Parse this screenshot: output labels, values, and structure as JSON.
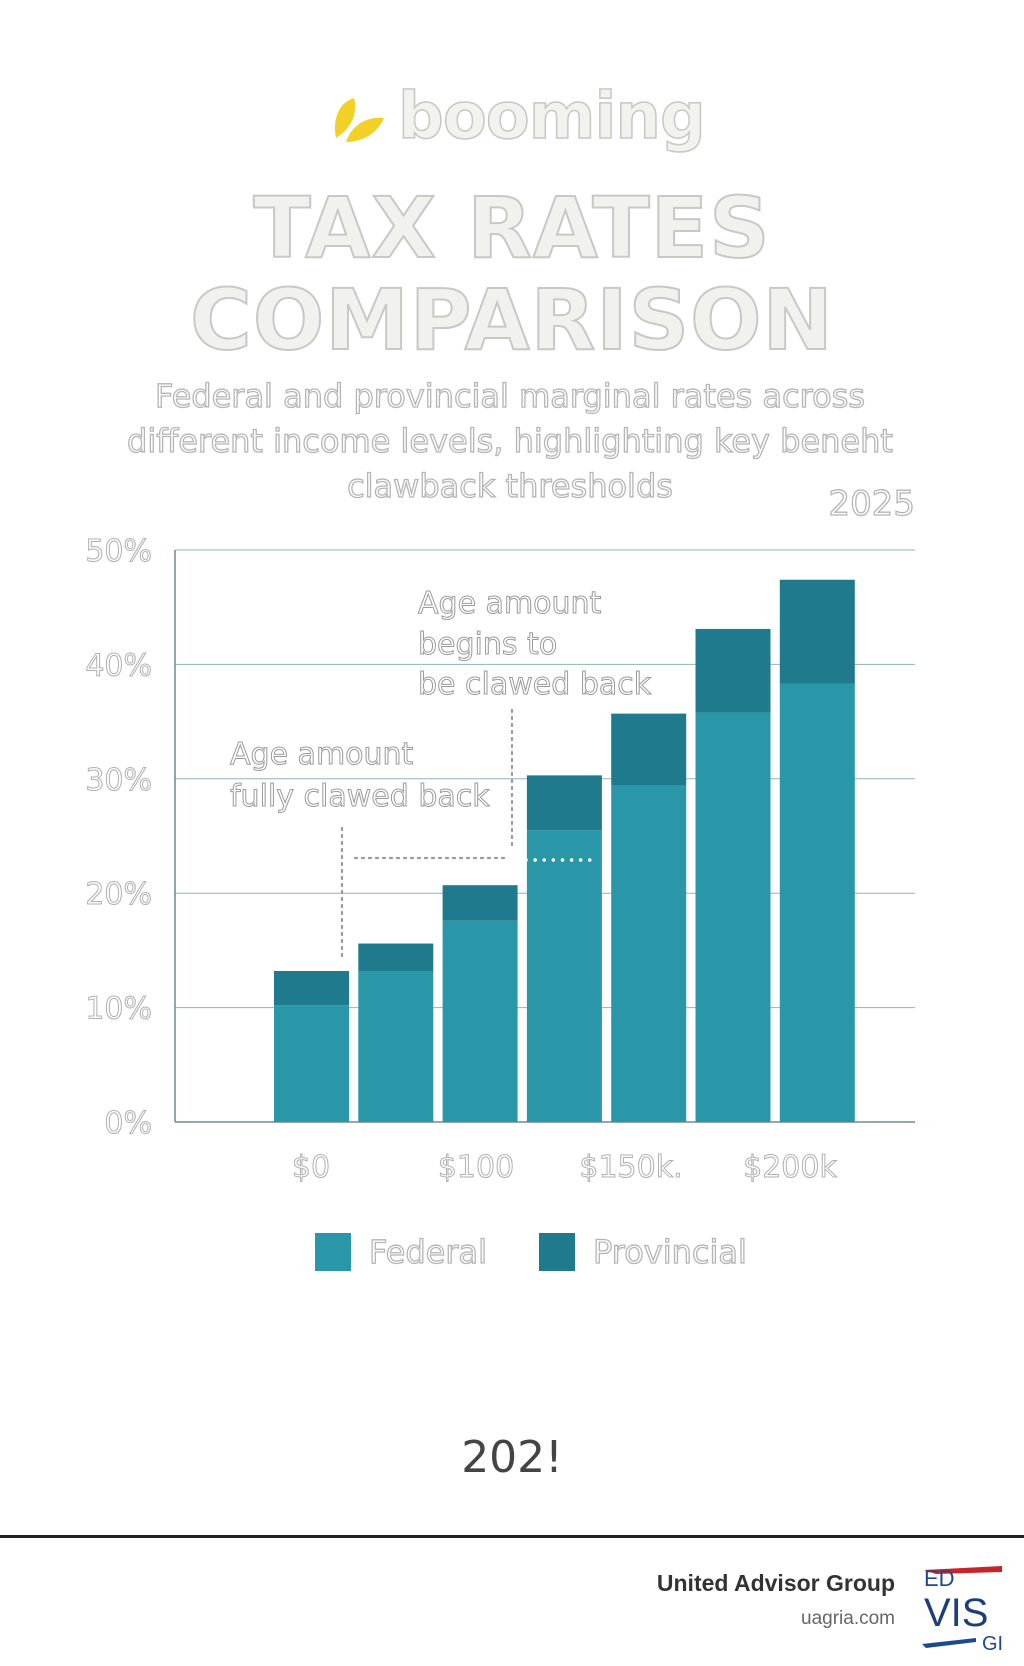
{
  "brand": {
    "name": "booming",
    "icon": "leaf-icon",
    "icon_color": "#f2d027"
  },
  "title": {
    "line1": "TAX RATES",
    "line2": "COMPARISON"
  },
  "subtitle": {
    "line1": "Federal and provincial marginal rates across",
    "line2": "different income levels, highlighting key beneht",
    "line3": "clawback thresholds"
  },
  "year_top": "2025",
  "year_bottom": "202!",
  "chart_data": {
    "type": "bar",
    "stacked": true,
    "ylim": [
      0,
      50
    ],
    "yticks": [
      "0%",
      "10%",
      "20%",
      "30%",
      "40%",
      "50%"
    ],
    "x_tick_labels": [
      "$0",
      "$100",
      "$150k.",
      "$200k"
    ],
    "grid": true,
    "legend_position": "bottom",
    "series": [
      {
        "name": "Federal",
        "color": "#2a97a8",
        "values": [
          10.2,
          13.2,
          17.6,
          25.5,
          29.4,
          35.8,
          38.3
        ]
      },
      {
        "name": "Provincial",
        "color": "#1f7a8d",
        "values": [
          3.0,
          2.4,
          3.1,
          4.8,
          6.3,
          7.3,
          9.1
        ]
      }
    ],
    "annotations": [
      {
        "line1": "Age amount",
        "line2": "begins to",
        "line3": "be clawed back"
      },
      {
        "line1": "Age amount",
        "line2": "fully clawed back"
      }
    ]
  },
  "footer": {
    "company": "United Advisor Group",
    "website": "uagria.com",
    "logo_letters": [
      "ED",
      "VIS",
      "GI"
    ]
  }
}
